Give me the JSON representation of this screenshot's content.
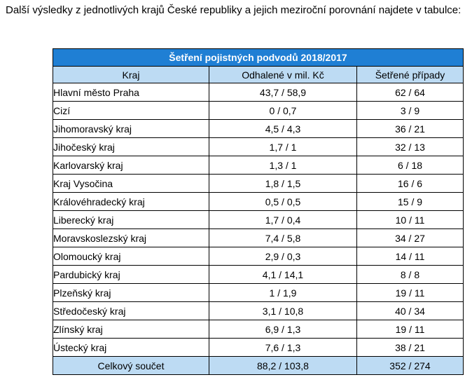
{
  "intro_text": "Další výsledky z jednotlivých krajů České republiky a jejich meziroční porovnání najdete v tabulce:",
  "table": {
    "title": "Šetření pojistných podvodů 2018/2017",
    "headers": [
      "Kraj",
      "Odhalené v mil. Kč",
      "Šetřené případy"
    ],
    "rows": [
      [
        "Hlavní město Praha",
        "43,7 / 58,9",
        "62 / 64"
      ],
      [
        "Cizí",
        "0 / 0,7",
        "3 / 9"
      ],
      [
        "Jihomoravský kraj",
        "4,5 / 4,3",
        "36 / 21"
      ],
      [
        "Jihočeský kraj",
        "1,7 / 1",
        "32 / 13"
      ],
      [
        "Karlovarský kraj",
        "1,3 / 1",
        "6 / 18"
      ],
      [
        "Kraj Vysočina",
        "1,8 / 1,5",
        "16 / 6"
      ],
      [
        "Královéhradecký kraj",
        "0,5 / 0,5",
        "15 / 9"
      ],
      [
        "Liberecký kraj",
        "1,7 / 0,4",
        "10 / 11"
      ],
      [
        "Moravskoslezský kraj",
        "7,4 / 5,8",
        "34 / 27"
      ],
      [
        "Olomoucký kraj",
        "2,9 / 0,3",
        "14 / 11"
      ],
      [
        "Pardubický kraj",
        "4,1 / 14,1",
        "8 / 8"
      ],
      [
        "Plzeňský kraj",
        "1 / 1,9",
        "19 / 11"
      ],
      [
        "Středočeský kraj",
        "3,1 / 10,8",
        "40 / 34"
      ],
      [
        "Zlínský kraj",
        "6,9 / 1,3",
        "19 / 11"
      ],
      [
        "Ústecký kraj",
        "7,6 / 1,3",
        "38 / 21"
      ]
    ],
    "total": [
      "Celkový součet",
      "88,2 / 103,8",
      "352 / 274"
    ]
  },
  "colors": {
    "title_bg": "#1f7fd4",
    "header_bg": "#bddbf3",
    "border": "#000000"
  }
}
